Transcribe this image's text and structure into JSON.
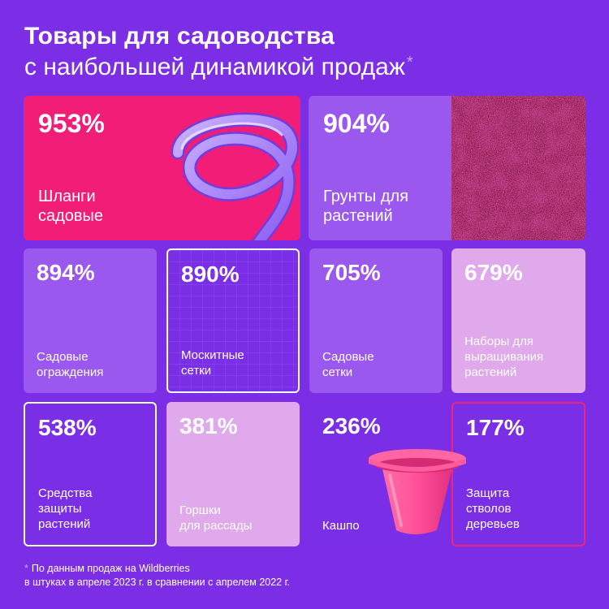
{
  "header": {
    "line1": "Товары для садоводства",
    "line2": "с наибольшей динамикой продаж",
    "star": "*"
  },
  "cards": [
    {
      "percent": "953%",
      "label": "Шланги\nсадовые"
    },
    {
      "percent": "904%",
      "label": "Грунты для\nрастений"
    },
    {
      "percent": "894%",
      "label": "Садовые\nограждения"
    },
    {
      "percent": "890%",
      "label": "Москитные\nсетки"
    },
    {
      "percent": "705%",
      "label": "Садовые\nсетки"
    },
    {
      "percent": "679%",
      "label": "Наборы для\nвыращивания\nрастений"
    },
    {
      "percent": "538%",
      "label": "Средства\nзащиты\nрастений"
    },
    {
      "percent": "381%",
      "label": "Горшки\nдля рассады"
    },
    {
      "percent": "236%",
      "label": "Кашпо"
    },
    {
      "percent": "177%",
      "label": "Защита\nстволов\nдеревьев"
    }
  ],
  "footnote": {
    "star": "*",
    "text": "По данным продаж на Wildberries\nв штуках в апреле 2023 г. в сравнении с апрелем 2022 г."
  },
  "colors": {
    "background": "#7b2ee6",
    "pink": "#f21d77",
    "light_purple": "#9a58ef",
    "lavender": "#dfa9ec"
  },
  "images": [
    "garden-hose-image",
    "soil-image",
    "flower-pot-image"
  ]
}
